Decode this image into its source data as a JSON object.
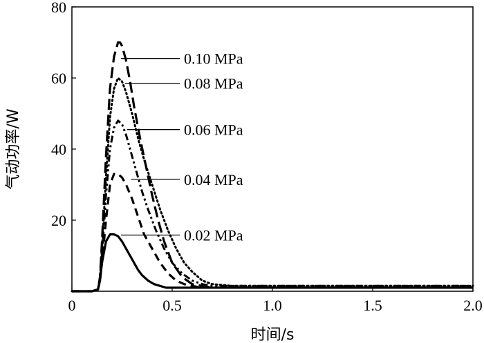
{
  "chart_data": {
    "type": "line",
    "title": "",
    "xlabel": "时间/s",
    "ylabel": "气动功率/W",
    "xlim": [
      0,
      2.0
    ],
    "ylim": [
      0,
      80
    ],
    "xticks": [
      0,
      0.5,
      1.0,
      1.5,
      2.0
    ],
    "xtick_labels": [
      "0",
      "0.5",
      "1.0",
      "1.5",
      "2.0"
    ],
    "yticks": [
      0,
      20,
      40,
      60,
      80
    ],
    "ytick_labels": [
      "",
      "20",
      "40",
      "60",
      "80"
    ],
    "grid": false,
    "legend": "none",
    "series": [
      {
        "name": "0.10 MPa",
        "style": "long-dash",
        "x": [
          0,
          0.1,
          0.13,
          0.14,
          0.15,
          0.17,
          0.19,
          0.21,
          0.23,
          0.24,
          0.25,
          0.27,
          0.29,
          0.31,
          0.34,
          0.37,
          0.4,
          0.43,
          0.46,
          0.5,
          0.55,
          0.6,
          0.65,
          0.7,
          0.8,
          1.0,
          1.2,
          1.5,
          2.0
        ],
        "y": [
          0,
          0,
          0.5,
          4,
          14,
          38,
          57,
          66,
          70,
          70,
          69,
          65,
          59,
          52,
          43,
          35,
          27,
          20,
          14,
          8,
          4,
          2,
          1.5,
          1,
          1,
          1,
          1,
          1,
          1
        ]
      },
      {
        "name": "0.08 MPa",
        "style": "dotted",
        "x": [
          0,
          0.1,
          0.13,
          0.14,
          0.15,
          0.17,
          0.19,
          0.21,
          0.23,
          0.25,
          0.27,
          0.3,
          0.33,
          0.36,
          0.4,
          0.44,
          0.48,
          0.52,
          0.56,
          0.6,
          0.65,
          0.7,
          0.8,
          1.0,
          1.2,
          1.5,
          2.0
        ],
        "y": [
          0,
          0,
          0.5,
          4,
          12,
          32,
          49,
          57,
          60,
          59,
          56,
          50,
          43,
          37,
          30,
          23,
          17,
          12,
          8,
          5.5,
          3,
          2,
          1.5,
          1.5,
          1.5,
          1.5,
          1.5
        ]
      },
      {
        "name": "0.06 MPa",
        "style": "dash-dot-dot",
        "x": [
          0,
          0.1,
          0.13,
          0.14,
          0.15,
          0.17,
          0.19,
          0.21,
          0.23,
          0.25,
          0.27,
          0.29,
          0.32,
          0.35,
          0.38,
          0.42,
          0.46,
          0.5,
          0.55,
          0.6,
          0.65,
          0.7,
          0.8,
          1.0,
          1.2,
          1.5,
          2.0
        ],
        "y": [
          0,
          0,
          0.5,
          3,
          10,
          27,
          40,
          46,
          48,
          47,
          44,
          40,
          34,
          28,
          23,
          17,
          12,
          8,
          5,
          3,
          2,
          1.5,
          1.5,
          1.5,
          1.5,
          1.5,
          1.5
        ]
      },
      {
        "name": "0.04 MPa",
        "style": "dash",
        "x": [
          0,
          0.1,
          0.13,
          0.14,
          0.15,
          0.17,
          0.19,
          0.21,
          0.23,
          0.25,
          0.27,
          0.3,
          0.33,
          0.36,
          0.4,
          0.44,
          0.48,
          0.52,
          0.56,
          0.6,
          0.65,
          0.7,
          0.8,
          1.0,
          1.2,
          1.5,
          2.0
        ],
        "y": [
          0,
          0,
          0.5,
          3,
          8,
          20,
          30,
          33,
          33,
          32,
          30,
          26,
          21,
          16,
          12,
          8,
          5,
          3,
          2,
          1.5,
          1,
          1,
          1,
          1,
          1,
          1,
          1
        ]
      },
      {
        "name": "0.02 MPa",
        "style": "solid",
        "x": [
          0,
          0.1,
          0.13,
          0.14,
          0.15,
          0.17,
          0.19,
          0.21,
          0.23,
          0.25,
          0.27,
          0.29,
          0.31,
          0.33,
          0.35,
          0.38,
          0.41,
          0.44,
          0.47,
          0.5,
          0.55,
          0.6,
          0.7,
          0.8,
          1.0,
          1.2,
          1.5,
          2.0
        ],
        "y": [
          0,
          0,
          0.5,
          3,
          8,
          14,
          16,
          16,
          15.5,
          14,
          12,
          10,
          8,
          6,
          4.5,
          3,
          2,
          1.5,
          1,
          1,
          1,
          1,
          1,
          1,
          1,
          1,
          1,
          1
        ]
      }
    ],
    "annotations": [
      {
        "text": "0.10 MPa",
        "series": "0.10 MPa",
        "x": 0.245,
        "y": 65.5
      },
      {
        "text": "0.08 MPa",
        "series": "0.08 MPa",
        "x": 0.265,
        "y": 58.5
      },
      {
        "text": "0.06 MPa",
        "series": "0.06 MPa",
        "x": 0.275,
        "y": 45.5
      },
      {
        "text": "0.04 MPa",
        "series": "0.04 MPa",
        "x": 0.295,
        "y": 31.5
      },
      {
        "text": "0.02 MPa",
        "series": "0.02 MPa",
        "x": 0.245,
        "y": 15.8
      }
    ]
  }
}
